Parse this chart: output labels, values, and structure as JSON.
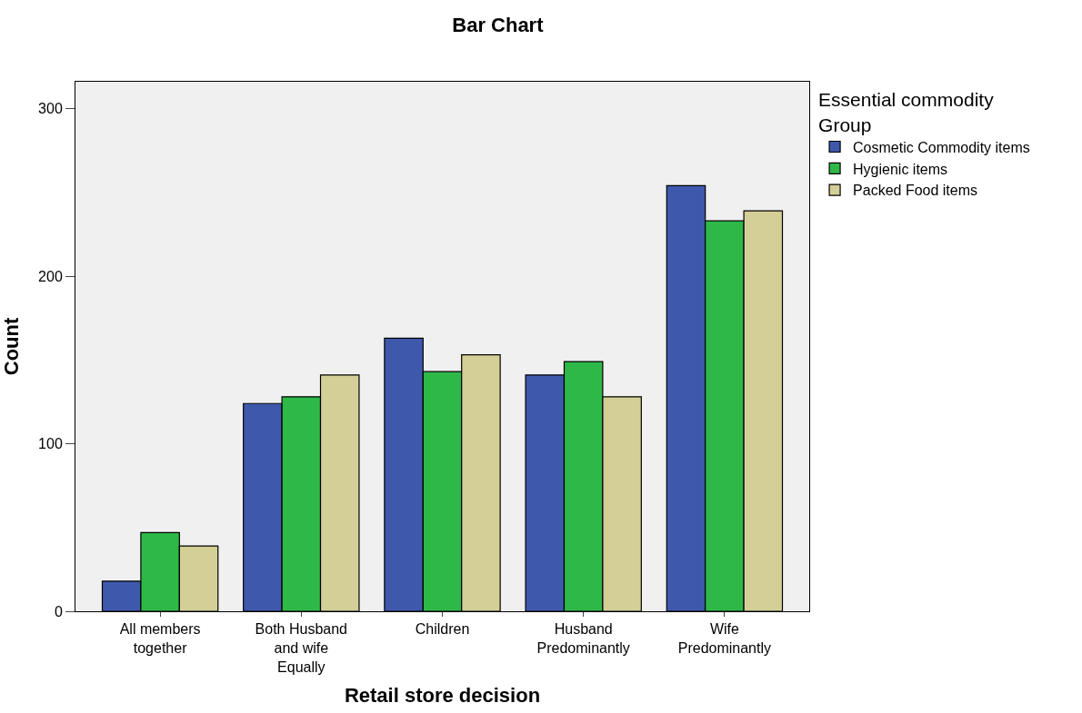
{
  "chart_data": {
    "type": "bar",
    "title": "Bar Chart",
    "xlabel": "Retail store decision",
    "ylabel": "Count",
    "legend_title": "Essential commodity Group",
    "categories": [
      "All members together",
      "Both Husband and wife Equally",
      "Children",
      "Husband Predominantly",
      "Wife Predominantly"
    ],
    "series": [
      {
        "name": "Cosmetic Commodity items",
        "color": "#3e58ac",
        "values": [
          18,
          124,
          163,
          141,
          254
        ]
      },
      {
        "name": "Hygienic items",
        "color": "#2eb848",
        "values": [
          47,
          128,
          143,
          149,
          233
        ]
      },
      {
        "name": "Packed Food items",
        "color": "#d4cf96",
        "values": [
          39,
          141,
          153,
          128,
          239
        ]
      }
    ],
    "ylim": [
      0,
      316
    ],
    "yticks": [
      0,
      100,
      200,
      300
    ],
    "grid": false,
    "legend": "top right"
  }
}
